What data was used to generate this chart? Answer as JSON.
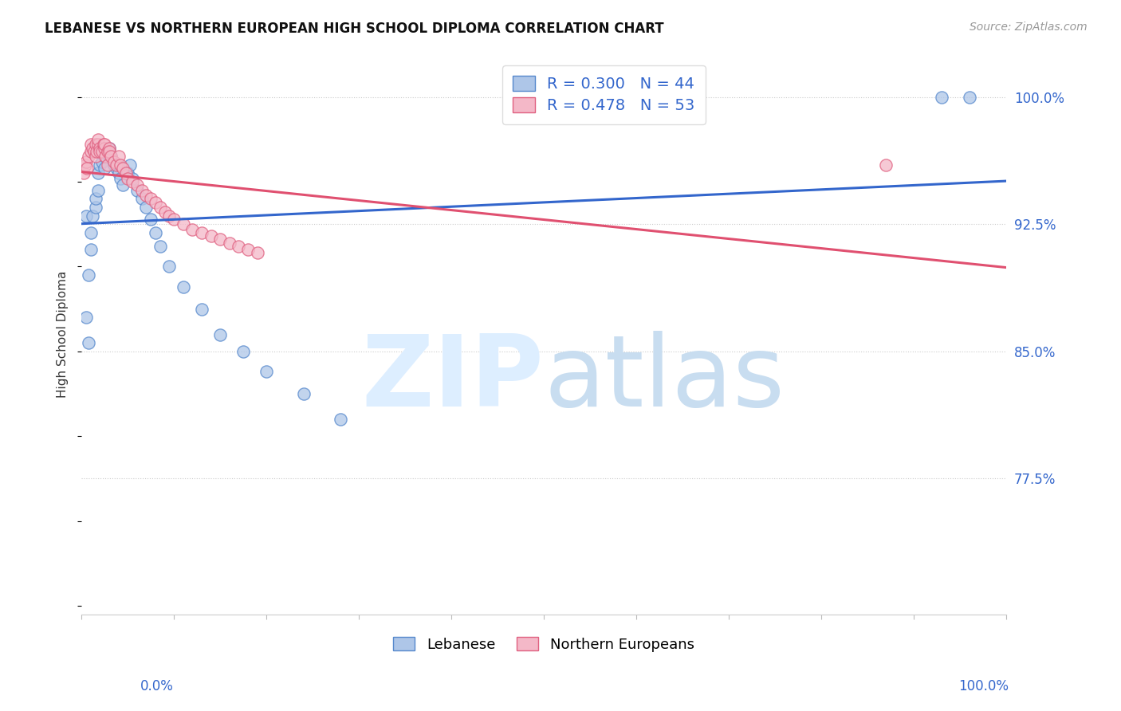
{
  "title": "LEBANESE VS NORTHERN EUROPEAN HIGH SCHOOL DIPLOMA CORRELATION CHART",
  "source": "Source: ZipAtlas.com",
  "ylabel": "High School Diploma",
  "ytick_labels": [
    "100.0%",
    "92.5%",
    "85.0%",
    "77.5%"
  ],
  "ytick_values": [
    1.0,
    0.925,
    0.85,
    0.775
  ],
  "xmin": 0.0,
  "xmax": 1.0,
  "ymin": 0.695,
  "ymax": 1.025,
  "blue_R": 0.3,
  "blue_N": 44,
  "pink_R": 0.478,
  "pink_N": 53,
  "blue_fill_color": "#aec6e8",
  "pink_fill_color": "#f4b8c8",
  "blue_edge_color": "#5588cc",
  "pink_edge_color": "#e06080",
  "blue_line_color": "#3366CC",
  "pink_line_color": "#e05070",
  "legend_label_blue": "Lebanese",
  "legend_label_pink": "Northern Europeans",
  "blue_points_x": [
    0.005,
    0.008,
    0.01,
    0.01,
    0.012,
    0.015,
    0.015,
    0.018,
    0.018,
    0.02,
    0.022,
    0.025,
    0.025,
    0.028,
    0.03,
    0.03,
    0.032,
    0.035,
    0.038,
    0.04,
    0.04,
    0.042,
    0.045,
    0.05,
    0.052,
    0.055,
    0.06,
    0.065,
    0.07,
    0.075,
    0.08,
    0.085,
    0.095,
    0.11,
    0.13,
    0.15,
    0.175,
    0.2,
    0.24,
    0.28,
    0.005,
    0.008,
    0.93,
    0.96
  ],
  "blue_points_y": [
    0.93,
    0.895,
    0.91,
    0.92,
    0.93,
    0.935,
    0.94,
    0.945,
    0.955,
    0.96,
    0.962,
    0.958,
    0.965,
    0.968,
    0.965,
    0.97,
    0.965,
    0.96,
    0.958,
    0.96,
    0.955,
    0.952,
    0.948,
    0.955,
    0.96,
    0.952,
    0.945,
    0.94,
    0.935,
    0.928,
    0.92,
    0.912,
    0.9,
    0.888,
    0.875,
    0.86,
    0.85,
    0.838,
    0.825,
    0.81,
    0.87,
    0.855,
    1.0,
    1.0
  ],
  "pink_points_x": [
    0.002,
    0.004,
    0.005,
    0.006,
    0.008,
    0.01,
    0.01,
    0.012,
    0.014,
    0.015,
    0.015,
    0.016,
    0.018,
    0.018,
    0.02,
    0.02,
    0.022,
    0.024,
    0.025,
    0.025,
    0.026,
    0.028,
    0.028,
    0.03,
    0.03,
    0.032,
    0.035,
    0.038,
    0.04,
    0.042,
    0.045,
    0.048,
    0.05,
    0.055,
    0.06,
    0.065,
    0.07,
    0.075,
    0.08,
    0.085,
    0.09,
    0.095,
    0.1,
    0.11,
    0.12,
    0.13,
    0.14,
    0.15,
    0.16,
    0.17,
    0.18,
    0.19,
    0.87
  ],
  "pink_points_y": [
    0.955,
    0.96,
    0.962,
    0.958,
    0.965,
    0.968,
    0.972,
    0.97,
    0.968,
    0.965,
    0.972,
    0.968,
    0.972,
    0.975,
    0.97,
    0.968,
    0.968,
    0.972,
    0.97,
    0.972,
    0.965,
    0.968,
    0.96,
    0.97,
    0.968,
    0.965,
    0.962,
    0.96,
    0.965,
    0.96,
    0.958,
    0.955,
    0.952,
    0.95,
    0.948,
    0.945,
    0.942,
    0.94,
    0.938,
    0.935,
    0.932,
    0.93,
    0.928,
    0.925,
    0.922,
    0.92,
    0.918,
    0.916,
    0.914,
    0.912,
    0.91,
    0.908,
    0.96
  ]
}
